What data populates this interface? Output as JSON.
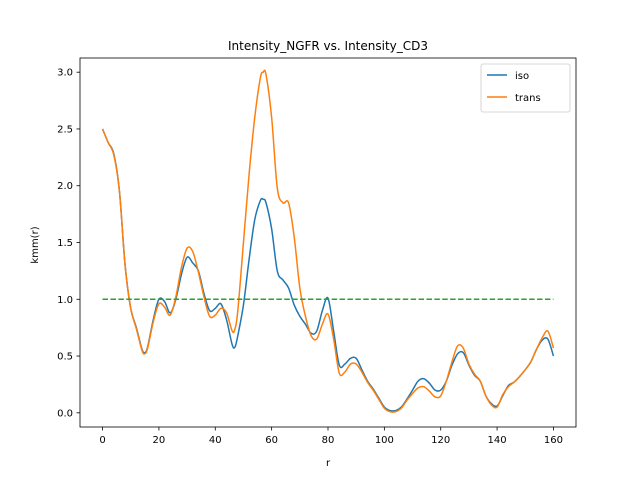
{
  "chart_data": {
    "type": "line",
    "title": "Intensity_NGFR vs. Intensity_CD3",
    "xlabel": "r",
    "ylabel": "kmm(r)",
    "xlim": [
      -8,
      168
    ],
    "ylim": [
      -0.125,
      3.125
    ],
    "xticks": [
      0,
      20,
      40,
      60,
      80,
      100,
      120,
      140,
      160
    ],
    "yticks": [
      0.0,
      0.5,
      1.0,
      1.5,
      2.0,
      2.5,
      3.0
    ],
    "xtick_labels": [
      "0",
      "20",
      "40",
      "60",
      "80",
      "100",
      "120",
      "140",
      "160"
    ],
    "ytick_labels": [
      "0.0",
      "0.5",
      "1.0",
      "1.5",
      "2.0",
      "2.5",
      "3.0"
    ],
    "grid": false,
    "legend_position": "top-right",
    "series": [
      {
        "name": "iso",
        "color": "#1f77b4",
        "style": "solid",
        "x": [
          0,
          2,
          4,
          6,
          8,
          10,
          12,
          14,
          15,
          16,
          18,
          20,
          22,
          24,
          26,
          28,
          30,
          32,
          34,
          36,
          38,
          40,
          42,
          44,
          46,
          47,
          48,
          50,
          52,
          54,
          56,
          57,
          58,
          60,
          62,
          64,
          66,
          68,
          70,
          72,
          74,
          76,
          78,
          80,
          82,
          84,
          86,
          88,
          90,
          92,
          94,
          96,
          98,
          100,
          102,
          104,
          106,
          108,
          110,
          112,
          114,
          116,
          118,
          120,
          122,
          124,
          126,
          128,
          130,
          132,
          134,
          136,
          138,
          140,
          142,
          144,
          146,
          148,
          150,
          152,
          154,
          156,
          158,
          160
        ],
        "y": [
          2.5,
          2.38,
          2.28,
          1.95,
          1.3,
          0.92,
          0.75,
          0.56,
          0.53,
          0.58,
          0.82,
          1.0,
          0.98,
          0.88,
          1.0,
          1.22,
          1.37,
          1.32,
          1.25,
          1.05,
          0.9,
          0.92,
          0.96,
          0.82,
          0.6,
          0.58,
          0.68,
          0.95,
          1.35,
          1.7,
          1.87,
          1.88,
          1.85,
          1.62,
          1.25,
          1.17,
          1.1,
          0.95,
          0.85,
          0.78,
          0.7,
          0.72,
          0.9,
          1.01,
          0.72,
          0.42,
          0.43,
          0.48,
          0.48,
          0.38,
          0.28,
          0.21,
          0.13,
          0.05,
          0.02,
          0.02,
          0.05,
          0.12,
          0.2,
          0.28,
          0.3,
          0.26,
          0.2,
          0.2,
          0.28,
          0.42,
          0.52,
          0.53,
          0.42,
          0.33,
          0.28,
          0.15,
          0.08,
          0.06,
          0.15,
          0.24,
          0.27,
          0.32,
          0.38,
          0.45,
          0.56,
          0.64,
          0.65,
          0.5
        ]
      },
      {
        "name": "trans",
        "color": "#ff7f0e",
        "style": "solid",
        "x": [
          0,
          2,
          4,
          6,
          8,
          10,
          12,
          14,
          15,
          16,
          18,
          20,
          22,
          24,
          26,
          28,
          30,
          32,
          34,
          36,
          38,
          40,
          42,
          44,
          46,
          47,
          48,
          50,
          52,
          54,
          56,
          57,
          58,
          60,
          62,
          64,
          66,
          68,
          70,
          72,
          74,
          76,
          78,
          80,
          82,
          84,
          86,
          88,
          90,
          92,
          94,
          96,
          98,
          100,
          102,
          104,
          106,
          108,
          110,
          112,
          114,
          116,
          118,
          120,
          122,
          124,
          126,
          128,
          130,
          132,
          134,
          136,
          138,
          140,
          142,
          144,
          146,
          148,
          150,
          152,
          154,
          156,
          158,
          160
        ],
        "y": [
          2.5,
          2.38,
          2.27,
          1.95,
          1.3,
          0.92,
          0.74,
          0.55,
          0.52,
          0.57,
          0.8,
          0.96,
          0.93,
          0.86,
          1.02,
          1.28,
          1.45,
          1.42,
          1.24,
          1.02,
          0.85,
          0.86,
          0.92,
          0.88,
          0.72,
          0.74,
          0.9,
          1.5,
          2.1,
          2.6,
          2.95,
          3.0,
          2.98,
          2.6,
          1.98,
          1.85,
          1.85,
          1.55,
          1.1,
          0.85,
          0.68,
          0.65,
          0.78,
          0.87,
          0.65,
          0.35,
          0.36,
          0.43,
          0.43,
          0.36,
          0.27,
          0.2,
          0.12,
          0.04,
          0.01,
          0.01,
          0.04,
          0.11,
          0.17,
          0.22,
          0.23,
          0.19,
          0.14,
          0.15,
          0.28,
          0.45,
          0.59,
          0.57,
          0.43,
          0.34,
          0.28,
          0.15,
          0.07,
          0.05,
          0.16,
          0.23,
          0.27,
          0.32,
          0.38,
          0.45,
          0.56,
          0.66,
          0.72,
          0.57
        ]
      },
      {
        "name": "",
        "color": "#2ca02c",
        "style": "dashed",
        "x": [
          0,
          160
        ],
        "y": [
          1.0,
          1.0
        ]
      }
    ],
    "legend": [
      {
        "label": "iso",
        "color": "#1f77b4"
      },
      {
        "label": "trans",
        "color": "#ff7f0e"
      }
    ]
  }
}
